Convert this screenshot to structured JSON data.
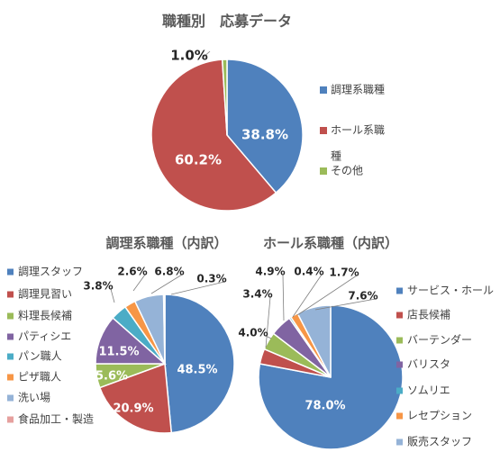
{
  "chart_data": [
    {
      "type": "pie",
      "title": "職種別　応募データ",
      "categories": [
        "調理系職種",
        "ホール系職種",
        "その他"
      ],
      "legend_lines": [
        [
          "調理系職種"
        ],
        [
          "ホール系職",
          "種"
        ],
        [
          "その他"
        ]
      ],
      "values": [
        38.8,
        60.2,
        1.0
      ],
      "labels": [
        "38.8%",
        "60.2%",
        "1.0%"
      ],
      "colors": [
        "#4f81bd",
        "#c0504d",
        "#9bbb59"
      ],
      "legend": "right"
    },
    {
      "type": "pie",
      "title": "調理系職種（内訳）",
      "categories": [
        "調理スタッフ",
        "調理見習い",
        "料理長候補",
        "パティシエ",
        "パン職人",
        "ピザ職人",
        "洗い場",
        "食品加工・製造"
      ],
      "values": [
        48.5,
        20.9,
        5.6,
        11.5,
        3.8,
        2.6,
        6.8,
        0.3
      ],
      "labels": [
        "48.5%",
        "20.9%",
        "5.6%",
        "11.5%",
        "3.8%",
        "2.6%",
        "6.8%",
        "0.3%"
      ],
      "colors": [
        "#4f81bd",
        "#c0504d",
        "#9bbb59",
        "#8064a2",
        "#4bacc6",
        "#f79646",
        "#95b3d7",
        "#e6a09e"
      ],
      "legend": "left"
    },
    {
      "type": "pie",
      "title": "ホール系職種（内訳）",
      "categories": [
        "サービス・ホール",
        "店長候補",
        "バーテンダー",
        "バリスタ",
        "ソムリエ",
        "レセプション",
        "販売スタッフ"
      ],
      "values": [
        78.0,
        3.4,
        4.0,
        4.9,
        0.4,
        1.7,
        7.6
      ],
      "labels": [
        "78.0%",
        "3.4%",
        "4.0%",
        "4.9%",
        "0.4%",
        "1.7%",
        "7.6%"
      ],
      "colors": [
        "#4f81bd",
        "#c0504d",
        "#9bbb59",
        "#8064a2",
        "#4bacc6",
        "#f79646",
        "#95b3d7"
      ],
      "legend": "right"
    }
  ]
}
